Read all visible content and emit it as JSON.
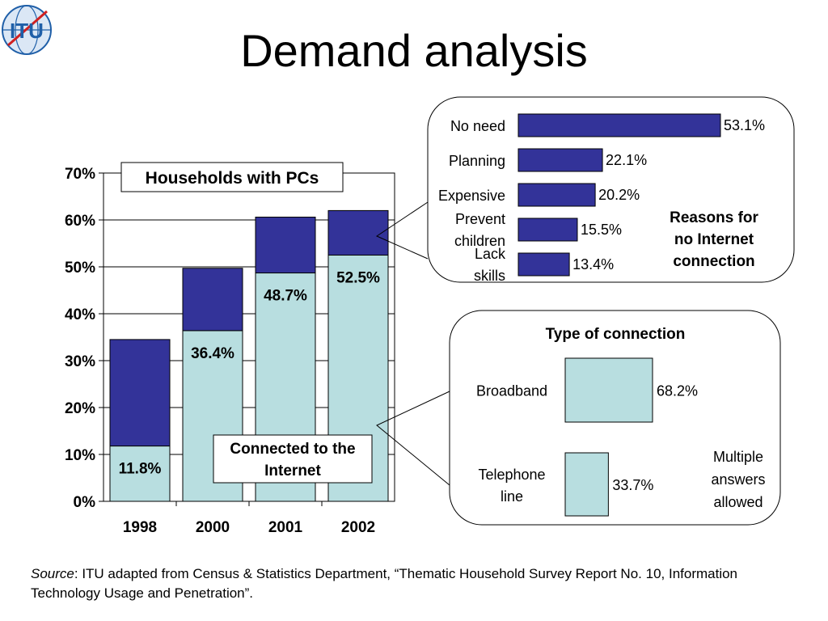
{
  "slide": {
    "title": "Demand analysis",
    "logo_text": "ITU",
    "source_label": "Source",
    "source_text": ": ITU adapted from Census & Statistics Department, “Thematic Household Survey Report No. 10, Information Technology Usage and Penetration”."
  },
  "colors": {
    "dark": "#333399",
    "light": "#B8DEE0",
    "logo_blue": "#1f5fa8",
    "logo_red": "#d02020"
  },
  "chart_data": [
    {
      "type": "bar",
      "title": "Households with PCs",
      "annotation": "Connected to the Internet",
      "categories": [
        "1998",
        "2000",
        "2001",
        "2002"
      ],
      "series": [
        {
          "name": "Connected to the Internet",
          "values": [
            11.8,
            36.4,
            48.7,
            52.5
          ]
        },
        {
          "values": [
            22.7,
            13.3,
            11.9,
            9.5
          ]
        }
      ],
      "totals": [
        34.5,
        49.7,
        60.6,
        62.0
      ],
      "data_labels": [
        "11.8%",
        "36.4%",
        "48.7%",
        "52.5%"
      ],
      "ylim": [
        0,
        70
      ],
      "yticks": [
        0,
        10,
        20,
        30,
        40,
        50,
        60,
        70
      ],
      "ytick_labels": [
        "0%",
        "10%",
        "20%",
        "30%",
        "40%",
        "50%",
        "60%",
        "70%"
      ],
      "stacked": true
    },
    {
      "type": "bar",
      "orientation": "horizontal",
      "title": "Reasons for no Internet connection",
      "title_lines": [
        "Reasons for",
        "no Internet",
        "connection"
      ],
      "categories": [
        "No need",
        "Planning",
        "Expensive",
        "Prevent children",
        "Lack skills"
      ],
      "category_lines": [
        [
          "No need"
        ],
        [
          "Planning"
        ],
        [
          "Expensive"
        ],
        [
          "Prevent",
          "children"
        ],
        [
          "Lack",
          "skills"
        ]
      ],
      "values": [
        53.1,
        22.1,
        20.2,
        15.5,
        13.4
      ],
      "data_labels": [
        "53.1%",
        "22.1%",
        "20.2%",
        "15.5%",
        "13.4%"
      ]
    },
    {
      "type": "bar",
      "orientation": "horizontal",
      "title": "Type of connection",
      "categories": [
        "Broadband",
        "Telephone line"
      ],
      "category_lines": [
        [
          "Broadband"
        ],
        [
          "Telephone",
          "line"
        ]
      ],
      "values": [
        68.2,
        33.7
      ],
      "data_labels": [
        "68.2%",
        "33.7%"
      ],
      "note_lines": [
        "Multiple",
        "answers",
        "allowed"
      ]
    }
  ]
}
